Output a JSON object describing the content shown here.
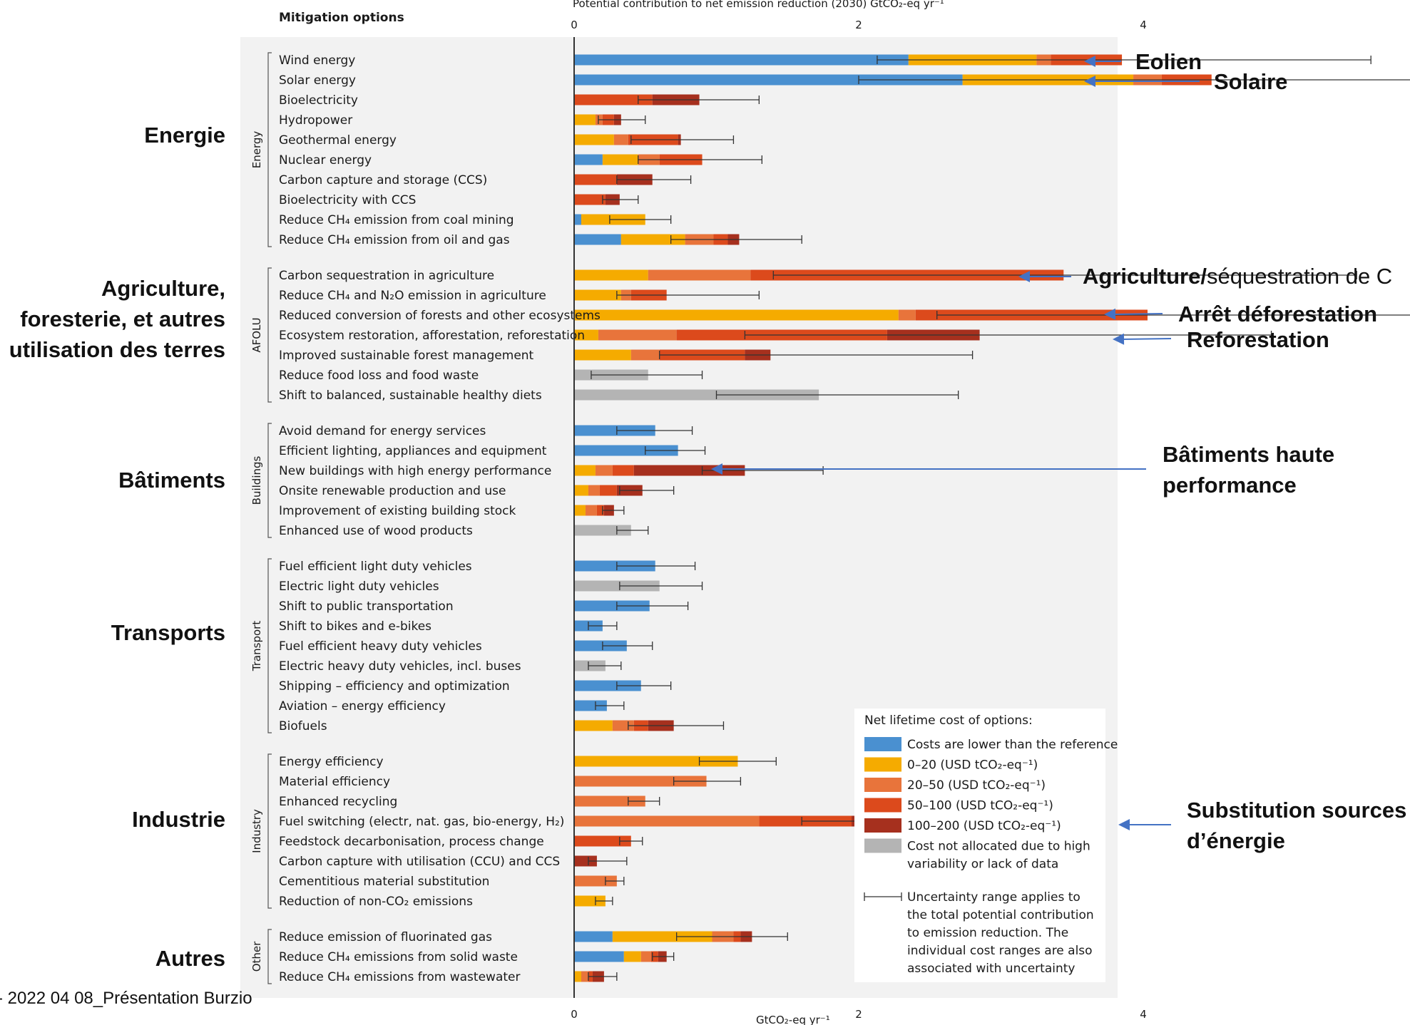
{
  "header": {
    "mitigation_label": "Mitigation options",
    "top_axis_title": "Potential contribution to net emission reduction (2030) GtCO₂-eq yr⁻¹",
    "bottom_axis_title": "GtCO₂-eq yr⁻¹"
  },
  "footer": "- 2022 04 08_Présentation Burzio",
  "colors": {
    "blue": "#4a90d0",
    "yellow": "#f5ab00",
    "orange": "#e8743b",
    "red": "#dc4a1c",
    "darkred": "#a6301e",
    "grey": "#b4b4b4",
    "panel": "#f2f2f2",
    "arrow": "#4472c4"
  },
  "legend": {
    "title": "Net lifetime cost of options:",
    "items": [
      {
        "color": "blue",
        "label": "Costs are lower than the reference"
      },
      {
        "color": "yellow",
        "label": "0–20 (USD tCO₂-eq⁻¹)"
      },
      {
        "color": "orange",
        "label": "20–50 (USD tCO₂-eq⁻¹)"
      },
      {
        "color": "red",
        "label": "50–100 (USD tCO₂-eq⁻¹)"
      },
      {
        "color": "darkred",
        "label": "100–200 (USD tCO₂-eq⁻¹)"
      },
      {
        "color": "grey",
        "label": "Cost not allocated due to high",
        "label2": "variability or lack of data"
      }
    ],
    "uncertainty_lines": [
      "Uncertainty range applies to",
      "the total potential contribution",
      "to emission reduction. The",
      "individual cost ranges are also",
      "associated with uncertainty"
    ]
  },
  "french_sectors": [
    {
      "lines": [
        "Energie"
      ]
    },
    {
      "lines": [
        "Agriculture,",
        "foresterie, et autres",
        "utilisation des terres"
      ]
    },
    {
      "lines": [
        "Bâtiments"
      ]
    },
    {
      "lines": [
        "Transports"
      ]
    },
    {
      "lines": [
        "Industrie"
      ]
    },
    {
      "lines": [
        "Autres"
      ]
    }
  ],
  "annotations": [
    {
      "bold": "Eolien",
      "normal": ""
    },
    {
      "bold": "Solaire",
      "normal": ""
    },
    {
      "bold": "Agriculture/",
      "normal": "séquestration de C"
    },
    {
      "bold": "Arrêt déforestation",
      "normal": ""
    },
    {
      "bold": "Reforestation",
      "normal": ""
    },
    {
      "bold": "Bâtiments haute",
      "bold2": "performance"
    },
    {
      "bold": "Substitution sources",
      "bold2": "d’énergie"
    }
  ],
  "chart_data": {
    "type": "bar",
    "orientation": "horizontal-stacked",
    "xlim": [
      0,
      7.6
    ],
    "xticks": [
      0,
      2,
      4,
      6
    ],
    "legend_placement": "bottom-right",
    "stack_order": [
      "blue",
      "yellow",
      "orange",
      "red",
      "darkred",
      "grey"
    ],
    "sectors": [
      {
        "name": "Energy",
        "options": [
          {
            "label": "Wind energy",
            "segments": {
              "blue": 2.35,
              "yellow": 0.9,
              "orange": 0.1,
              "red": 0.0,
              "darkred": 0.0,
              "grey": 0
            },
            "extra_orange": 0.5,
            "err": [
              2.13,
              5.6
            ]
          },
          {
            "label": "Solar energy",
            "segments": {
              "blue": 2.73,
              "yellow": 1.2,
              "orange": 0.2,
              "red": 0.35,
              "darkred": 0.0,
              "grey": 0
            },
            "err": [
              2.0,
              7.0
            ]
          },
          {
            "label": "Bioelectricity",
            "segments": {
              "blue": 0,
              "yellow": 0,
              "orange": 0,
              "red": 0.55,
              "darkred": 0.33,
              "grey": 0
            },
            "err": [
              0.45,
              1.3
            ]
          },
          {
            "label": "Hydropower",
            "segments": {
              "blue": 0,
              "yellow": 0.15,
              "orange": 0.05,
              "red": 0.08,
              "darkred": 0.05,
              "grey": 0
            },
            "err": [
              0.17,
              0.5
            ]
          },
          {
            "label": "Geothermal energy",
            "segments": {
              "blue": 0,
              "yellow": 0.28,
              "orange": 0.1,
              "red": 0.35,
              "darkred": 0.02,
              "grey": 0
            },
            "err": [
              0.4,
              1.12
            ]
          },
          {
            "label": "Nuclear energy",
            "segments": {
              "blue": 0.2,
              "yellow": 0.25,
              "orange": 0.15,
              "red": 0.3,
              "darkred": 0.0,
              "grey": 0
            },
            "extra_darkred": 0.0,
            "err": [
              0.45,
              1.32
            ]
          },
          {
            "label": "Carbon capture and storage (CCS)",
            "segments": {
              "blue": 0,
              "yellow": 0,
              "orange": 0,
              "red": 0.3,
              "darkred": 0.25,
              "grey": 0
            },
            "err": [
              0.3,
              0.82
            ]
          },
          {
            "label": "Bioelectricity with CCS",
            "segments": {
              "blue": 0,
              "yellow": 0,
              "orange": 0,
              "red": 0.22,
              "darkred": 0.1,
              "grey": 0
            },
            "err": [
              0.2,
              0.45
            ]
          },
          {
            "label": "Reduce CH₄ emission from coal mining",
            "segments": {
              "blue": 0.05,
              "yellow": 0.45,
              "orange": 0,
              "red": 0,
              "darkred": 0,
              "grey": 0
            },
            "err": [
              0.25,
              0.68
            ]
          },
          {
            "label": "Reduce CH₄ emission from oil and gas",
            "segments": {
              "blue": 0.33,
              "yellow": 0.45,
              "orange": 0.2,
              "red": 0.1,
              "darkred": 0.08,
              "grey": 0
            },
            "err": [
              0.68,
              1.6
            ]
          }
        ]
      },
      {
        "name": "AFOLU",
        "options": [
          {
            "label": "Carbon sequestration in agriculture",
            "segments": {
              "blue": 0,
              "yellow": 0.52,
              "orange": 0.72,
              "red": 2.2,
              "darkred": 0,
              "grey": 0
            },
            "err": [
              1.4,
              5.5
            ]
          },
          {
            "label": "Reduce CH₄ and N₂O emission in agriculture",
            "segments": {
              "blue": 0,
              "yellow": 0.33,
              "orange": 0.07,
              "red": 0.25,
              "darkred": 0,
              "grey": 0
            },
            "err": [
              0.3,
              1.3
            ]
          },
          {
            "label": "Reduced conversion of forests and other ecosystems",
            "segments": {
              "blue": 0,
              "yellow": 2.28,
              "orange": 0.12,
              "red": 1.63,
              "darkred": 0,
              "grey": 0
            },
            "err": [
              2.55,
              7.3
            ]
          },
          {
            "label": "Ecosystem restoration, afforestation, reforestation",
            "segments": {
              "blue": 0,
              "yellow": 0.17,
              "orange": 0.55,
              "red": 1.48,
              "darkred": 0.65,
              "grey": 0
            },
            "err": [
              1.2,
              4.9
            ]
          },
          {
            "label": "Improved sustainable forest management",
            "segments": {
              "blue": 0,
              "yellow": 0.4,
              "orange": 0.2,
              "red": 0.6,
              "darkred": 0.18,
              "grey": 0
            },
            "err": [
              0.6,
              2.8
            ]
          },
          {
            "label": "Reduce food loss and food waste",
            "segments": {
              "blue": 0,
              "yellow": 0,
              "orange": 0,
              "red": 0,
              "darkred": 0,
              "grey": 0.52
            },
            "err": [
              0.12,
              0.9
            ]
          },
          {
            "label": "Shift to balanced, sustainable healthy diets",
            "segments": {
              "blue": 0,
              "yellow": 0,
              "orange": 0,
              "red": 0,
              "darkred": 0,
              "grey": 1.72
            },
            "err": [
              1.0,
              2.7
            ]
          }
        ]
      },
      {
        "name": "Buildings",
        "options": [
          {
            "label": "Avoid demand for energy services",
            "segments": {
              "blue": 0.57,
              "yellow": 0,
              "orange": 0,
              "red": 0,
              "darkred": 0,
              "grey": 0
            },
            "err": [
              0.3,
              0.83
            ]
          },
          {
            "label": "Efficient lighting, appliances and equipment",
            "segments": {
              "blue": 0.73,
              "yellow": 0,
              "orange": 0,
              "red": 0,
              "darkred": 0,
              "grey": 0
            },
            "err": [
              0.5,
              0.92
            ]
          },
          {
            "label": "New buildings with high energy performance",
            "segments": {
              "blue": 0,
              "yellow": 0.15,
              "orange": 0.12,
              "red": 0.15,
              "darkred": 0.78,
              "grey": 0
            },
            "err": [
              0.9,
              1.75
            ]
          },
          {
            "label": "Onsite renewable production and use",
            "segments": {
              "blue": 0,
              "yellow": 0.1,
              "orange": 0.08,
              "red": 0.12,
              "darkred": 0.18,
              "grey": 0
            },
            "err": [
              0.32,
              0.7
            ]
          },
          {
            "label": "Improvement of existing building stock",
            "segments": {
              "blue": 0,
              "yellow": 0.08,
              "orange": 0.08,
              "red": 0.05,
              "darkred": 0.07,
              "grey": 0
            },
            "err": [
              0.2,
              0.35
            ]
          },
          {
            "label": "Enhanced use of wood products",
            "segments": {
              "blue": 0,
              "yellow": 0,
              "orange": 0,
              "red": 0,
              "darkred": 0,
              "grey": 0.4
            },
            "err": [
              0.3,
              0.52
            ]
          }
        ]
      },
      {
        "name": "Transport",
        "options": [
          {
            "label": "Fuel efficient light duty vehicles",
            "segments": {
              "blue": 0.57,
              "yellow": 0,
              "orange": 0,
              "red": 0,
              "darkred": 0,
              "grey": 0
            },
            "err": [
              0.3,
              0.85
            ]
          },
          {
            "label": "Electric light duty vehicles",
            "segments": {
              "blue": 0,
              "yellow": 0,
              "orange": 0,
              "red": 0,
              "darkred": 0,
              "grey": 0.6
            },
            "err": [
              0.32,
              0.9
            ]
          },
          {
            "label": "Shift to public transportation",
            "segments": {
              "blue": 0.53,
              "yellow": 0,
              "orange": 0,
              "red": 0,
              "darkred": 0,
              "grey": 0
            },
            "err": [
              0.3,
              0.8
            ]
          },
          {
            "label": "Shift to bikes and e-bikes",
            "segments": {
              "blue": 0.2,
              "yellow": 0,
              "orange": 0,
              "red": 0,
              "darkred": 0,
              "grey": 0
            },
            "err": [
              0.1,
              0.3
            ]
          },
          {
            "label": "Fuel efficient heavy duty vehicles",
            "segments": {
              "blue": 0.37,
              "yellow": 0,
              "orange": 0,
              "red": 0,
              "darkred": 0,
              "grey": 0
            },
            "err": [
              0.2,
              0.55
            ]
          },
          {
            "label": "Electric heavy duty vehicles, incl. buses",
            "segments": {
              "blue": 0,
              "yellow": 0,
              "orange": 0,
              "red": 0,
              "darkred": 0,
              "grey": 0.22
            },
            "err": [
              0.1,
              0.33
            ]
          },
          {
            "label": "Shipping – efficiency and optimization",
            "segments": {
              "blue": 0.47,
              "yellow": 0,
              "orange": 0,
              "red": 0,
              "darkred": 0,
              "grey": 0
            },
            "err": [
              0.3,
              0.68
            ]
          },
          {
            "label": "Aviation – energy efficiency",
            "segments": {
              "blue": 0.23,
              "yellow": 0,
              "orange": 0,
              "red": 0,
              "darkred": 0,
              "grey": 0
            },
            "err": [
              0.15,
              0.35
            ]
          },
          {
            "label": "Biofuels",
            "segments": {
              "blue": 0,
              "yellow": 0.27,
              "orange": 0.15,
              "red": 0.1,
              "darkred": 0.18,
              "grey": 0
            },
            "err": [
              0.38,
              1.05
            ]
          }
        ]
      },
      {
        "name": "Industry",
        "options": [
          {
            "label": "Energy efficiency",
            "segments": {
              "blue": 0,
              "yellow": 1.15,
              "orange": 0,
              "red": 0,
              "darkred": 0,
              "grey": 0
            },
            "err": [
              0.88,
              1.42
            ]
          },
          {
            "label": "Material efficiency",
            "segments": {
              "blue": 0,
              "yellow": 0,
              "orange": 0.93,
              "red": 0,
              "darkred": 0,
              "grey": 0
            },
            "err": [
              0.7,
              1.17
            ]
          },
          {
            "label": "Enhanced recycling",
            "segments": {
              "blue": 0,
              "yellow": 0,
              "orange": 0.5,
              "red": 0,
              "darkred": 0,
              "grey": 0
            },
            "err": [
              0.38,
              0.6
            ]
          },
          {
            "label": "Fuel switching (electr, nat. gas, bio-energy, H₂)",
            "segments": {
              "blue": 0,
              "yellow": 0,
              "orange": 1.3,
              "red": 0.65,
              "darkred": 0.15,
              "grey": 0
            },
            "err": [
              1.6,
              2.62
            ]
          },
          {
            "label": "Feedstock decarbonisation, process change",
            "segments": {
              "blue": 0,
              "yellow": 0,
              "orange": 0,
              "red": 0.4,
              "darkred": 0,
              "grey": 0
            },
            "err": [
              0.32,
              0.48
            ]
          },
          {
            "label": "Carbon capture with utilisation (CCU) and CCS",
            "segments": {
              "blue": 0,
              "yellow": 0,
              "orange": 0,
              "red": 0,
              "darkred": 0.16,
              "grey": 0
            },
            "err": [
              0.1,
              0.37
            ]
          },
          {
            "label": "Cementitious material substitution",
            "segments": {
              "blue": 0,
              "yellow": 0,
              "orange": 0.3,
              "red": 0,
              "darkred": 0,
              "grey": 0
            },
            "err": [
              0.22,
              0.35
            ]
          },
          {
            "label": "Reduction of non-CO₂ emissions",
            "segments": {
              "blue": 0,
              "yellow": 0.22,
              "orange": 0,
              "red": 0,
              "darkred": 0,
              "grey": 0
            },
            "err": [
              0.15,
              0.27
            ]
          }
        ]
      },
      {
        "name": "Other",
        "options": [
          {
            "label": "Reduce emission of fluorinated gas",
            "segments": {
              "blue": 0.27,
              "yellow": 0.7,
              "orange": 0.15,
              "red": 0.05,
              "darkred": 0.08,
              "grey": 0
            },
            "err": [
              0.72,
              1.5
            ]
          },
          {
            "label": "Reduce CH₄ emissions from solid waste",
            "segments": {
              "blue": 0.35,
              "yellow": 0.12,
              "orange": 0.07,
              "red": 0.05,
              "darkred": 0.06,
              "grey": 0
            },
            "err": [
              0.55,
              0.7
            ]
          },
          {
            "label": "Reduce CH₄ emissions from wastewater",
            "segments": {
              "blue": 0,
              "yellow": 0.05,
              "orange": 0.05,
              "red": 0.03,
              "darkred": 0.08,
              "grey": 0
            },
            "err": [
              0.1,
              0.3
            ]
          }
        ]
      }
    ]
  }
}
